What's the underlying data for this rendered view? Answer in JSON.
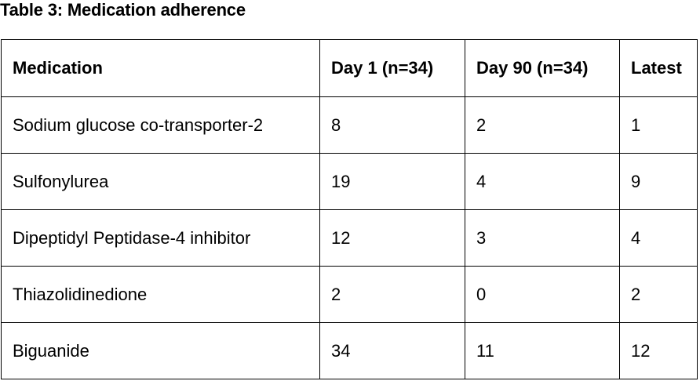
{
  "title": "Table 3: Medication adherence",
  "table": {
    "headers": [
      "Medication",
      "Day 1 (n=34)",
      "Day 90 (n=34)",
      "Latest"
    ],
    "rows": [
      [
        "Sodium glucose co-transporter-2",
        "8",
        "2",
        "1"
      ],
      [
        "Sulfonylurea",
        "19",
        "4",
        "9"
      ],
      [
        "Dipeptidyl Peptidase-4 inhibitor",
        "12",
        "3",
        "4"
      ],
      [
        "Thiazolidinedione",
        "2",
        "0",
        "2"
      ],
      [
        "Biguanide",
        "34",
        "11",
        "12"
      ]
    ]
  }
}
